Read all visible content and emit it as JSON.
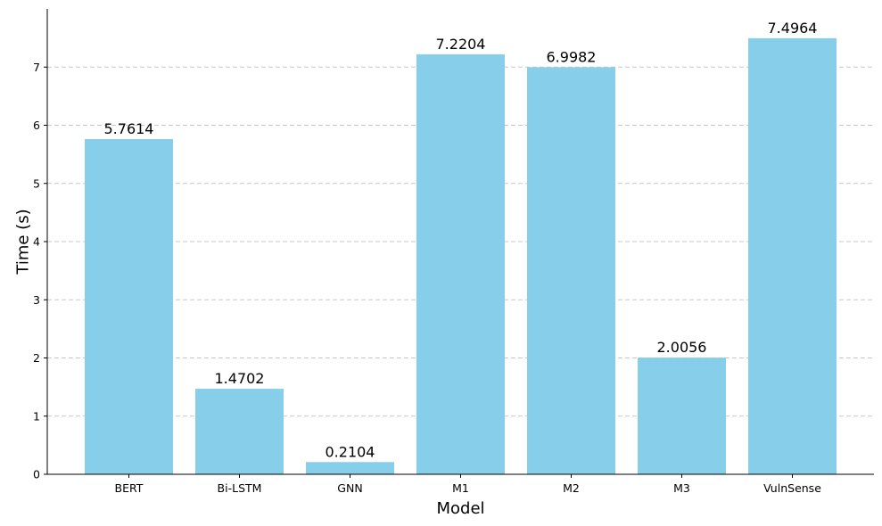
{
  "chart_data": {
    "type": "bar",
    "categories": [
      "BERT",
      "Bi-LSTM",
      "GNN",
      "M1",
      "M2",
      "M3",
      "VulnSense"
    ],
    "values": [
      5.7614,
      1.4702,
      0.2104,
      7.2204,
      6.9982,
      2.0056,
      7.4964
    ],
    "data_labels": [
      "5.7614",
      "1.4702",
      "0.2104",
      "7.2204",
      "6.9982",
      "2.0056",
      "7.4964"
    ],
    "xlabel": "Model",
    "ylabel": "Time (s)",
    "ylim": [
      0,
      8
    ],
    "yticks": [
      0,
      1,
      2,
      3,
      4,
      5,
      6,
      7
    ],
    "grid": "y-dashed",
    "colors": {
      "bar": "#87ceeb",
      "grid": "#c8c8c8",
      "axis": "#000000"
    }
  }
}
